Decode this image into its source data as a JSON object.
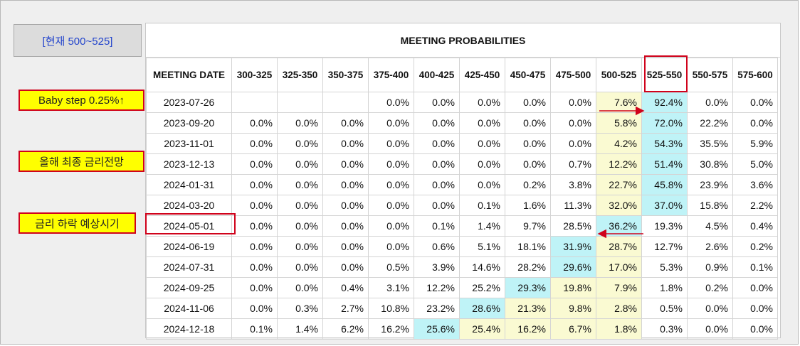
{
  "current_label": "[현재 500~525]",
  "callouts": {
    "baby_step": "Baby step 0.25%↑",
    "year_end": "올해 최종 금리전망",
    "rate_cut": "금리 하락 예상시기"
  },
  "colors": {
    "yellow_highlight": "#fafad2",
    "cyan_highlight": "#bff3f7",
    "callout_fill": "#ffff00",
    "annotation_red": "#d0021b",
    "current_text": "#2244cc"
  },
  "chart_data": {
    "type": "table",
    "title": "MEETING PROBABILITIES",
    "date_header": "MEETING DATE",
    "columns": [
      "300-325",
      "325-350",
      "350-375",
      "375-400",
      "400-425",
      "425-450",
      "450-475",
      "475-500",
      "500-525",
      "525-550",
      "550-575",
      "575-600"
    ],
    "rows": [
      {
        "date": "2023-07-26",
        "values": [
          "",
          "",
          "",
          "0.0%",
          "0.0%",
          "0.0%",
          "0.0%",
          "0.0%",
          "7.6%",
          "92.4%",
          "0.0%",
          "0.0%"
        ],
        "yellow": [
          8
        ],
        "cyan": [
          9
        ]
      },
      {
        "date": "2023-09-20",
        "values": [
          "0.0%",
          "0.0%",
          "0.0%",
          "0.0%",
          "0.0%",
          "0.0%",
          "0.0%",
          "0.0%",
          "5.8%",
          "72.0%",
          "22.2%",
          "0.0%"
        ],
        "yellow": [
          8
        ],
        "cyan": [
          9
        ]
      },
      {
        "date": "2023-11-01",
        "values": [
          "0.0%",
          "0.0%",
          "0.0%",
          "0.0%",
          "0.0%",
          "0.0%",
          "0.0%",
          "0.0%",
          "4.2%",
          "54.3%",
          "35.5%",
          "5.9%"
        ],
        "yellow": [
          8
        ],
        "cyan": [
          9
        ]
      },
      {
        "date": "2023-12-13",
        "values": [
          "0.0%",
          "0.0%",
          "0.0%",
          "0.0%",
          "0.0%",
          "0.0%",
          "0.0%",
          "0.7%",
          "12.2%",
          "51.4%",
          "30.8%",
          "5.0%"
        ],
        "yellow": [
          8
        ],
        "cyan": [
          9
        ]
      },
      {
        "date": "2024-01-31",
        "values": [
          "0.0%",
          "0.0%",
          "0.0%",
          "0.0%",
          "0.0%",
          "0.0%",
          "0.2%",
          "3.8%",
          "22.7%",
          "45.8%",
          "23.9%",
          "3.6%"
        ],
        "yellow": [
          8
        ],
        "cyan": [
          9
        ]
      },
      {
        "date": "2024-03-20",
        "values": [
          "0.0%",
          "0.0%",
          "0.0%",
          "0.0%",
          "0.0%",
          "0.1%",
          "1.6%",
          "11.3%",
          "32.0%",
          "37.0%",
          "15.8%",
          "2.2%"
        ],
        "yellow": [
          8
        ],
        "cyan": [
          9
        ]
      },
      {
        "date": "2024-05-01",
        "values": [
          "0.0%",
          "0.0%",
          "0.0%",
          "0.0%",
          "0.1%",
          "1.4%",
          "9.7%",
          "28.5%",
          "36.2%",
          "19.3%",
          "4.5%",
          "0.4%"
        ],
        "yellow": [],
        "cyan": [
          8
        ]
      },
      {
        "date": "2024-06-19",
        "values": [
          "0.0%",
          "0.0%",
          "0.0%",
          "0.0%",
          "0.6%",
          "5.1%",
          "18.1%",
          "31.9%",
          "28.7%",
          "12.7%",
          "2.6%",
          "0.2%"
        ],
        "yellow": [
          8
        ],
        "cyan": [
          7
        ]
      },
      {
        "date": "2024-07-31",
        "values": [
          "0.0%",
          "0.0%",
          "0.0%",
          "0.5%",
          "3.9%",
          "14.6%",
          "28.2%",
          "29.6%",
          "17.0%",
          "5.3%",
          "0.9%",
          "0.1%"
        ],
        "yellow": [
          8
        ],
        "cyan": [
          7
        ]
      },
      {
        "date": "2024-09-25",
        "values": [
          "0.0%",
          "0.0%",
          "0.4%",
          "3.1%",
          "12.2%",
          "25.2%",
          "29.3%",
          "19.8%",
          "7.9%",
          "1.8%",
          "0.2%",
          "0.0%"
        ],
        "yellow": [
          7,
          8
        ],
        "cyan": [
          6
        ]
      },
      {
        "date": "2024-11-06",
        "values": [
          "0.0%",
          "0.3%",
          "2.7%",
          "10.8%",
          "23.2%",
          "28.6%",
          "21.3%",
          "9.8%",
          "2.8%",
          "0.5%",
          "0.0%",
          "0.0%"
        ],
        "yellow": [
          6,
          7,
          8
        ],
        "cyan": [
          5
        ]
      },
      {
        "date": "2024-12-18",
        "values": [
          "0.1%",
          "1.4%",
          "6.2%",
          "16.2%",
          "25.6%",
          "25.4%",
          "16.2%",
          "6.7%",
          "1.8%",
          "0.3%",
          "0.0%",
          "0.0%"
        ],
        "yellow": [
          5,
          6,
          7,
          8
        ],
        "cyan": [
          4
        ]
      }
    ]
  }
}
